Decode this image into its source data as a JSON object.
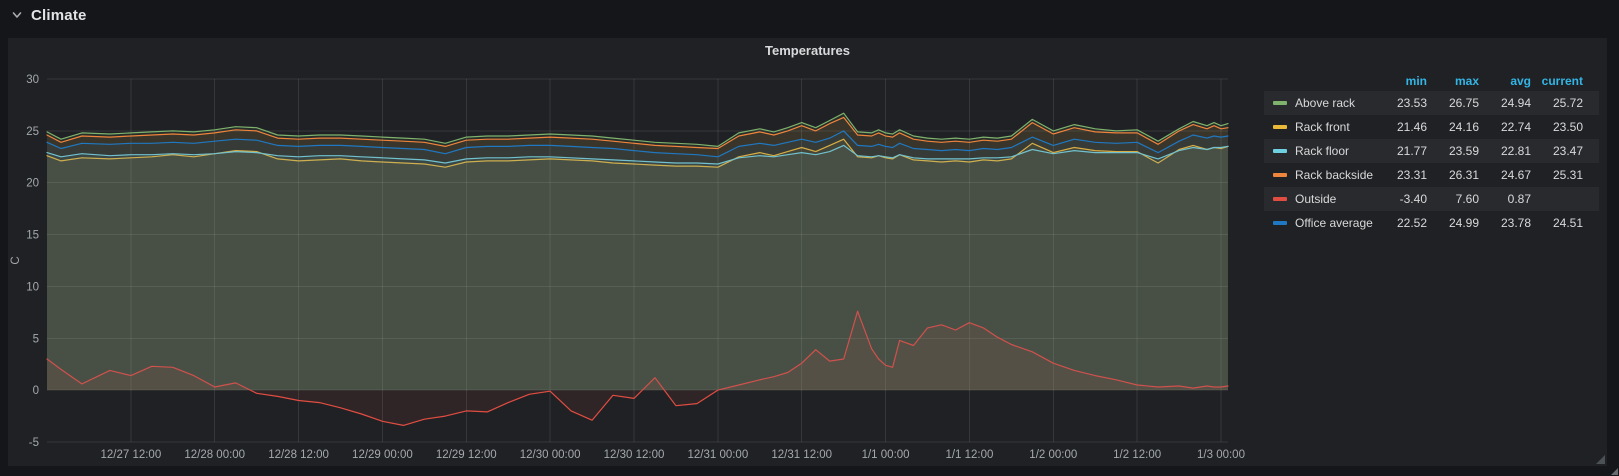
{
  "row_header": {
    "title": "Climate",
    "collapse_icon": "chevron-down"
  },
  "panel": {
    "title": "Temperatures"
  },
  "colors": {
    "page_bg": "#151619",
    "panel_bg": "#1f2124",
    "legend_header": "#33b5e5",
    "grid_line": "rgba(255,255,255,0.10)",
    "axis_text": "#a4a9ae"
  },
  "chart_data": {
    "type": "area",
    "title": "Temperatures",
    "xlabel": "",
    "ylabel": "C",
    "ylim": [
      -5,
      30
    ],
    "grid": true,
    "legend_position": "right-table",
    "fill_opacity": 0.09,
    "y_ticks": [
      30,
      25,
      20,
      15,
      10,
      5,
      0,
      -5
    ],
    "x_ticks": [
      {
        "t": 12,
        "label": "12/27 12:00"
      },
      {
        "t": 24,
        "label": "12/28 00:00"
      },
      {
        "t": 36,
        "label": "12/28 12:00"
      },
      {
        "t": 48,
        "label": "12/29 00:00"
      },
      {
        "t": 60,
        "label": "12/29 12:00"
      },
      {
        "t": 72,
        "label": "12/30 00:00"
      },
      {
        "t": 84,
        "label": "12/30 12:00"
      },
      {
        "t": 96,
        "label": "12/31 00:00"
      },
      {
        "t": 108,
        "label": "12/31 12:00"
      },
      {
        "t": 120,
        "label": "1/1 00:00"
      },
      {
        "t": 132,
        "label": "1/1 12:00"
      },
      {
        "t": 144,
        "label": "1/2 00:00"
      },
      {
        "t": 156,
        "label": "1/2 12:00"
      },
      {
        "t": 168,
        "label": "1/3 00:00"
      }
    ],
    "x_hours": [
      0,
      2,
      5,
      9,
      12,
      15,
      18,
      21,
      24,
      27,
      30,
      33,
      36,
      39,
      42,
      45,
      48,
      51,
      54,
      57,
      60,
      63,
      66,
      69,
      72,
      75,
      78,
      81,
      84,
      87,
      90,
      93,
      96,
      99,
      102,
      104,
      106,
      108,
      110,
      112,
      114,
      116,
      118,
      119,
      120,
      121,
      122,
      124,
      126,
      128,
      130,
      132,
      134,
      136,
      138,
      141,
      144,
      147,
      150,
      153,
      156,
      159,
      162,
      164,
      166,
      167,
      168,
      169
    ],
    "series": [
      {
        "name": "Above rack",
        "color": "#7EB26D",
        "values": [
          24.9,
          24.2,
          24.8,
          24.7,
          24.8,
          24.9,
          25.0,
          24.9,
          25.1,
          25.4,
          25.3,
          24.6,
          24.5,
          24.6,
          24.6,
          24.5,
          24.4,
          24.3,
          24.2,
          23.8,
          24.4,
          24.5,
          24.5,
          24.6,
          24.7,
          24.6,
          24.5,
          24.3,
          24.1,
          23.9,
          23.8,
          23.7,
          23.5,
          24.8,
          25.2,
          24.9,
          25.3,
          25.8,
          25.3,
          26.0,
          26.7,
          24.9,
          24.8,
          25.1,
          24.8,
          24.7,
          25.1,
          24.5,
          24.3,
          24.2,
          24.3,
          24.2,
          24.4,
          24.3,
          24.5,
          26.1,
          25.0,
          25.6,
          25.2,
          25.0,
          25.1,
          24.0,
          25.2,
          25.9,
          25.5,
          25.8,
          25.5,
          25.7
        ]
      },
      {
        "name": "Rack front",
        "color": "#EAB839",
        "values": [
          22.6,
          22.1,
          22.4,
          22.3,
          22.4,
          22.5,
          22.7,
          22.5,
          22.8,
          23.1,
          23.0,
          22.3,
          22.1,
          22.2,
          22.3,
          22.1,
          22.0,
          21.9,
          21.8,
          21.5,
          22.0,
          22.1,
          22.1,
          22.2,
          22.3,
          22.2,
          22.1,
          21.9,
          21.8,
          21.7,
          21.6,
          21.6,
          21.5,
          22.5,
          22.9,
          22.6,
          23.0,
          23.4,
          23.0,
          23.6,
          24.2,
          22.5,
          22.4,
          22.6,
          22.4,
          22.3,
          22.7,
          22.2,
          22.1,
          22.0,
          22.1,
          22.0,
          22.2,
          22.1,
          22.3,
          23.8,
          22.9,
          23.4,
          23.1,
          23.0,
          23.0,
          21.9,
          23.2,
          23.6,
          23.2,
          23.4,
          23.3,
          23.5
        ]
      },
      {
        "name": "Rack floor",
        "color": "#6ED0E0",
        "values": [
          22.9,
          22.5,
          22.8,
          22.6,
          22.7,
          22.7,
          22.8,
          22.7,
          22.8,
          23.0,
          22.9,
          22.6,
          22.5,
          22.6,
          22.6,
          22.5,
          22.4,
          22.3,
          22.2,
          21.9,
          22.3,
          22.4,
          22.4,
          22.5,
          22.5,
          22.4,
          22.3,
          22.2,
          22.1,
          22.0,
          21.9,
          21.9,
          21.8,
          22.4,
          22.6,
          22.5,
          22.7,
          22.9,
          22.7,
          23.0,
          23.6,
          22.6,
          22.5,
          22.6,
          22.5,
          22.4,
          22.7,
          22.4,
          22.3,
          22.3,
          22.3,
          22.3,
          22.4,
          22.4,
          22.5,
          23.2,
          22.8,
          23.1,
          22.9,
          22.9,
          22.9,
          22.3,
          23.1,
          23.4,
          23.2,
          23.4,
          23.4,
          23.5
        ]
      },
      {
        "name": "Rack backside",
        "color": "#EF843C",
        "values": [
          24.6,
          23.9,
          24.5,
          24.4,
          24.5,
          24.6,
          24.7,
          24.6,
          24.8,
          25.1,
          25.0,
          24.3,
          24.2,
          24.3,
          24.3,
          24.2,
          24.1,
          24.0,
          23.9,
          23.5,
          24.1,
          24.2,
          24.2,
          24.3,
          24.4,
          24.3,
          24.2,
          24.0,
          23.8,
          23.6,
          23.5,
          23.4,
          23.3,
          24.5,
          24.9,
          24.6,
          25.0,
          25.5,
          25.0,
          25.7,
          26.3,
          24.6,
          24.5,
          24.8,
          24.5,
          24.4,
          24.8,
          24.2,
          24.0,
          23.9,
          24.0,
          23.9,
          24.1,
          24.0,
          24.2,
          25.8,
          24.7,
          25.3,
          24.9,
          24.8,
          24.8,
          23.7,
          25.0,
          25.6,
          25.2,
          25.5,
          25.2,
          25.3
        ]
      },
      {
        "name": "Outside",
        "color": "#E24D42",
        "values": [
          3.0,
          2.0,
          0.6,
          1.9,
          1.4,
          2.3,
          2.2,
          1.4,
          0.3,
          0.7,
          -0.3,
          -0.6,
          -1.0,
          -1.2,
          -1.7,
          -2.3,
          -3.0,
          -3.4,
          -2.8,
          -2.5,
          -2.0,
          -2.1,
          -1.2,
          -0.4,
          -0.1,
          -2.0,
          -2.9,
          -0.5,
          -0.8,
          1.2,
          -1.5,
          -1.3,
          0.0,
          0.5,
          1.0,
          1.3,
          1.7,
          2.6,
          3.9,
          2.8,
          3.0,
          7.6,
          4.0,
          3.0,
          2.4,
          2.2,
          4.8,
          4.3,
          6.0,
          6.3,
          5.8,
          6.5,
          6.0,
          5.1,
          4.4,
          3.7,
          2.6,
          1.9,
          1.4,
          1.0,
          0.5,
          0.3,
          0.4,
          0.2,
          0.4,
          0.3,
          0.3,
          0.4
        ]
      },
      {
        "name": "Office average",
        "color": "#1F78C1",
        "values": [
          23.9,
          23.3,
          23.8,
          23.7,
          23.8,
          23.8,
          23.9,
          23.8,
          24.0,
          24.2,
          24.1,
          23.6,
          23.5,
          23.6,
          23.6,
          23.5,
          23.4,
          23.3,
          23.2,
          22.8,
          23.4,
          23.5,
          23.5,
          23.6,
          23.6,
          23.5,
          23.4,
          23.3,
          23.1,
          22.9,
          22.8,
          22.7,
          22.5,
          23.5,
          23.8,
          23.6,
          23.9,
          24.2,
          23.9,
          24.3,
          25.0,
          23.6,
          23.5,
          23.7,
          23.5,
          23.4,
          23.8,
          23.3,
          23.2,
          23.1,
          23.2,
          23.1,
          23.3,
          23.2,
          23.4,
          24.4,
          23.6,
          24.2,
          23.9,
          23.8,
          23.9,
          22.9,
          24.0,
          24.6,
          24.3,
          24.5,
          24.4,
          24.5
        ]
      }
    ]
  },
  "legend": {
    "columns": [
      "min",
      "max",
      "avg",
      "current"
    ],
    "rows": [
      {
        "name": "Above rack",
        "color": "#7EB26D",
        "min": "23.53",
        "max": "26.75",
        "avg": "24.94",
        "current": "25.72"
      },
      {
        "name": "Rack front",
        "color": "#EAB839",
        "min": "21.46",
        "max": "24.16",
        "avg": "22.74",
        "current": "23.50"
      },
      {
        "name": "Rack floor",
        "color": "#6ED0E0",
        "min": "21.77",
        "max": "23.59",
        "avg": "22.81",
        "current": "23.47"
      },
      {
        "name": "Rack backside",
        "color": "#EF843C",
        "min": "23.31",
        "max": "26.31",
        "avg": "24.67",
        "current": "25.31"
      },
      {
        "name": "Outside",
        "color": "#E24D42",
        "min": "-3.40",
        "max": "7.60",
        "avg": "0.87",
        "current": ""
      },
      {
        "name": "Office average",
        "color": "#1F78C1",
        "min": "22.52",
        "max": "24.99",
        "avg": "23.78",
        "current": "24.51"
      }
    ]
  }
}
